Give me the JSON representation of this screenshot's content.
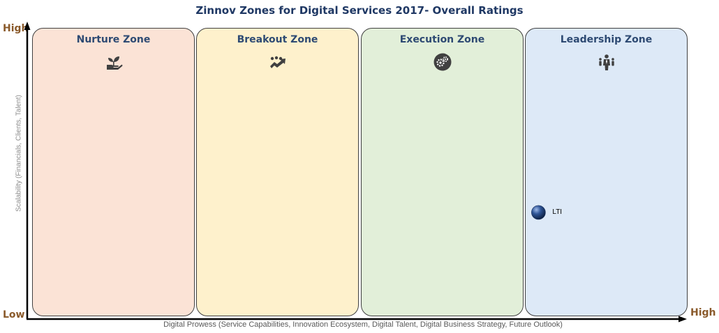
{
  "chart_data": {
    "type": "scatter",
    "title": "Zinnov Zones for Digital Services 2017- Overall Ratings",
    "xlabel": "Digital Prowess (Service Capabilities, Innovation Ecosystem, Digital Talent, Digital Business Strategy, Future Outlook)",
    "ylabel": "Scalability (Financials, Clients, Talent)",
    "x_axis_ends": {
      "low": "Low",
      "high": "High"
    },
    "y_axis_ends": {
      "low": "Low",
      "high": "High"
    },
    "xlim": [
      0,
      4
    ],
    "ylim": [
      0,
      1
    ],
    "zones": [
      {
        "name": "Nurture Zone",
        "icon": "plant-in-hand-icon",
        "color": "#fbe3d6"
      },
      {
        "name": "Breakout Zone",
        "icon": "people-rising-arrow-icon",
        "color": "#fef1cc"
      },
      {
        "name": "Execution Zone",
        "icon": "gears-icon",
        "color": "#e2efd9"
      },
      {
        "name": "Leadership Zone",
        "icon": "leader-group-icon",
        "color": "#dde9f7"
      }
    ],
    "points": [
      {
        "label": "LTI",
        "x": 3.09,
        "y": 0.36,
        "color": "#2f5597"
      }
    ],
    "grid": false,
    "legend": "none"
  }
}
